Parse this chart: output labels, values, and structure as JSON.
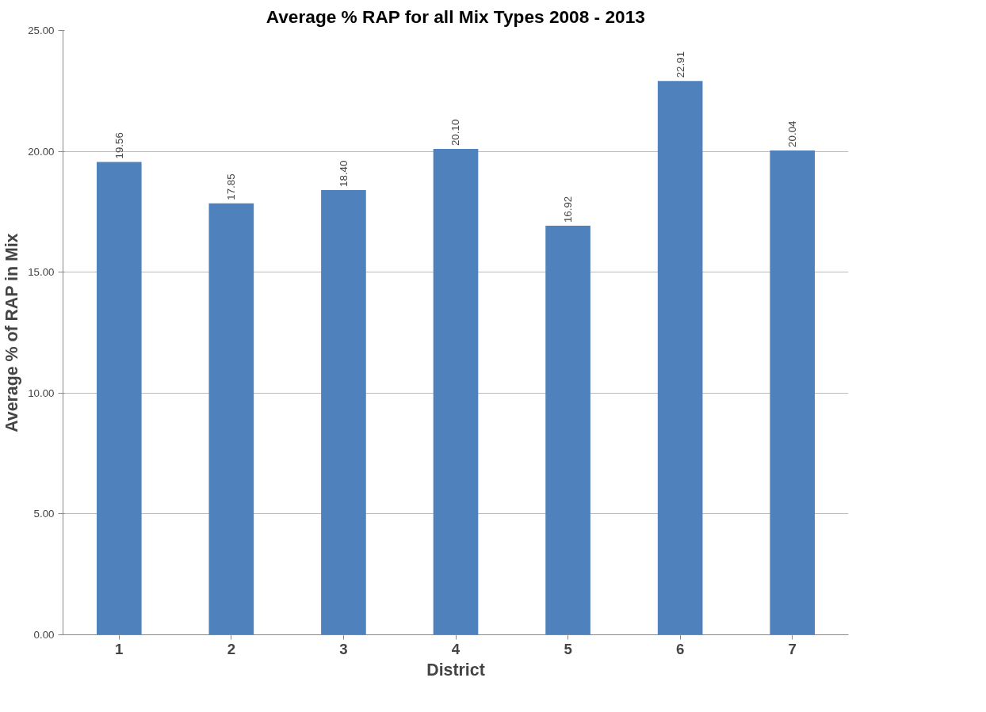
{
  "chart_data": {
    "type": "bar",
    "title": "Average % RAP for all Mix Types 2008 - 2013",
    "xlabel": "District",
    "ylabel": "Average % of RAP in Mix",
    "categories": [
      "1",
      "2",
      "3",
      "4",
      "5",
      "6",
      "7"
    ],
    "values": [
      19.56,
      17.85,
      18.4,
      20.1,
      16.92,
      22.91,
      20.04
    ],
    "color": "#4f81bd",
    "ylim": [
      0,
      25
    ],
    "yticks": [
      {
        "value": 0,
        "label": "0.00"
      },
      {
        "value": 5,
        "label": "5.00"
      },
      {
        "value": 10,
        "label": "10.00"
      },
      {
        "value": 15,
        "label": "15.00"
      },
      {
        "value": 20,
        "label": "20.00"
      },
      {
        "value": 25,
        "label": "25.00"
      }
    ],
    "value_labels": [
      "19.56",
      "17.85",
      "18.40",
      "20.10",
      "16.92",
      "22.91",
      "20.04"
    ],
    "grid": "y"
  }
}
